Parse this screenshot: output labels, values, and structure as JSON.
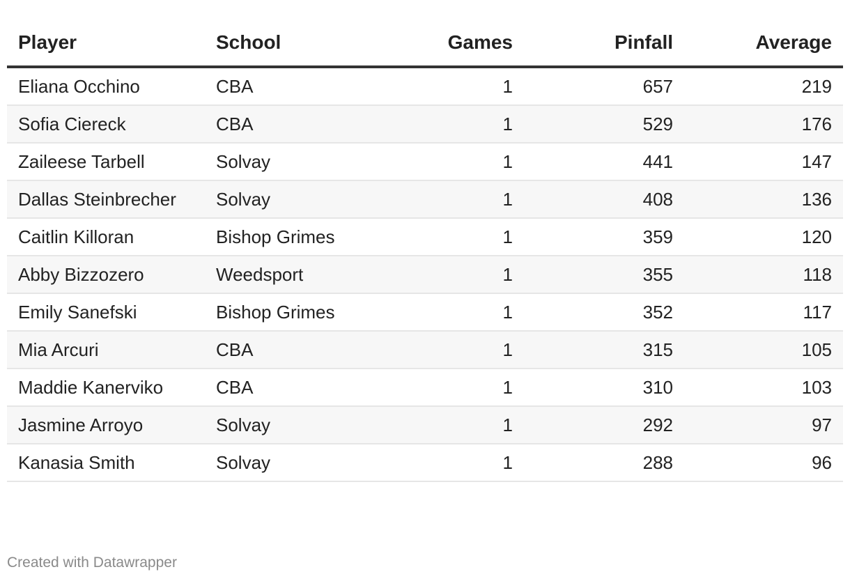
{
  "chart_data": {
    "type": "table",
    "columns": [
      "Player",
      "School",
      "Games",
      "Pinfall",
      "Average"
    ],
    "rows": [
      [
        "Eliana Occhino",
        "CBA",
        "1",
        "657",
        "219"
      ],
      [
        "Sofia Ciereck",
        "CBA",
        "1",
        "529",
        "176"
      ],
      [
        "Zaileese Tarbell",
        "Solvay",
        "1",
        "441",
        "147"
      ],
      [
        "Dallas Steinbrecher",
        "Solvay",
        "1",
        "408",
        "136"
      ],
      [
        "Caitlin Killoran",
        "Bishop Grimes",
        "1",
        "359",
        "120"
      ],
      [
        "Abby Bizzozero",
        "Weedsport",
        "1",
        "355",
        "118"
      ],
      [
        "Emily Sanefski",
        "Bishop Grimes",
        "1",
        "352",
        "117"
      ],
      [
        "Mia Arcuri",
        "CBA",
        "1",
        "315",
        "105"
      ],
      [
        "Maddie Kanerviko",
        "CBA",
        "1",
        "310",
        "103"
      ],
      [
        "Jasmine Arroyo",
        "Solvay",
        "1",
        "292",
        "97"
      ],
      [
        "Kanasia Smith",
        "Solvay",
        "1",
        "288",
        "96"
      ]
    ]
  },
  "footer": {
    "credit": "Created with Datawrapper"
  }
}
